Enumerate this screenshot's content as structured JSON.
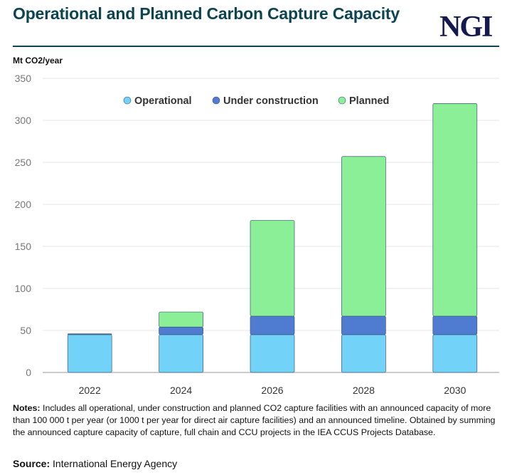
{
  "title": "Operational and Planned Carbon Capture Capacity",
  "logo": "NGI",
  "chart_data": {
    "type": "bar",
    "stacked": true,
    "ylabel": "Mt CO2/year",
    "ylim": [
      0,
      350
    ],
    "yticks": [
      0,
      50,
      100,
      150,
      200,
      250,
      300,
      350
    ],
    "grid": true,
    "legend_position": "top-center",
    "categories": [
      "2022",
      "2024",
      "2026",
      "2028",
      "2030"
    ],
    "series": [
      {
        "name": "Operational",
        "color": "#72d2f8",
        "values": [
          45,
          45,
          45,
          45,
          45
        ]
      },
      {
        "name": "Under construction",
        "color": "#4f7bd1",
        "values": [
          1,
          9,
          22,
          22,
          22
        ]
      },
      {
        "name": "Planned",
        "color": "#8bef97",
        "values": [
          0,
          18,
          114,
          190,
          253
        ]
      }
    ]
  },
  "notes_label": "Notes:",
  "notes": " Includes all operational, under construction and planned CO2 capture facilities with an announced capacity of more than 100 000 t per year (or 1000 t per year for direct air capture facilities) and an announced timeline. Obtained by summing the announced capture capacity of capture, full chain and CCU projects in the IEA CCUS Projects Database.",
  "source_label": "Source:",
  "source": " International Energy Agency"
}
